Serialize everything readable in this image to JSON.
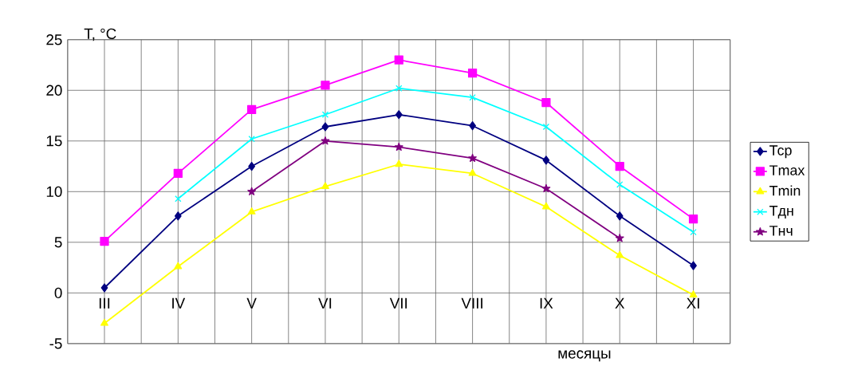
{
  "chart_data": {
    "type": "line",
    "xlabel": "месяцы",
    "ylabel": "T, °C",
    "categories": [
      "III",
      "IV",
      "V",
      "VI",
      "VII",
      "VIII",
      "IX",
      "X",
      "XI"
    ],
    "series": [
      {
        "name": "Тср",
        "color": "#000080",
        "marker": "diamond",
        "values": [
          0.5,
          7.6,
          12.5,
          16.4,
          17.6,
          16.5,
          13.1,
          7.6,
          2.7
        ]
      },
      {
        "name": "Tmax",
        "color": "#ff00ff",
        "marker": "square",
        "values": [
          5.1,
          11.8,
          18.1,
          20.5,
          23.0,
          21.7,
          18.8,
          12.5,
          7.3
        ]
      },
      {
        "name": "Tmin",
        "color": "#ffff00",
        "marker": "triangle",
        "values": [
          -3.0,
          2.6,
          8.0,
          10.5,
          12.7,
          11.8,
          8.5,
          3.7,
          -0.2
        ]
      },
      {
        "name": "Тдн",
        "color": "#00ffff",
        "marker": "cross",
        "values": [
          null,
          9.3,
          15.2,
          17.6,
          20.2,
          19.3,
          16.4,
          10.7,
          6.0
        ]
      },
      {
        "name": "Тнч",
        "color": "#800080",
        "marker": "star",
        "values": [
          null,
          null,
          10.0,
          15.0,
          14.4,
          13.3,
          10.3,
          5.4,
          null
        ]
      }
    ],
    "ylim": [
      -5,
      25
    ],
    "yticks": [
      -5,
      0,
      5,
      10,
      15,
      20,
      25
    ],
    "grid": true,
    "legend": "right"
  }
}
